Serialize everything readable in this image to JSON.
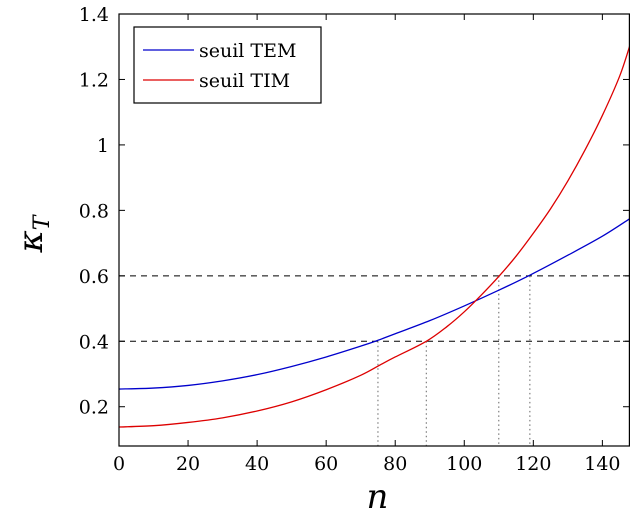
{
  "chart_data": {
    "type": "line",
    "xlabel": "n",
    "ylabel": "κ",
    "ylabel_sub": "T",
    "xlim": [
      0,
      148
    ],
    "ylim": [
      0.08,
      1.4
    ],
    "x_ticks": [
      0,
      20,
      40,
      60,
      80,
      100,
      120,
      140
    ],
    "x_tick_labels": [
      "0",
      "20",
      "40",
      "60",
      "80",
      "100",
      "120",
      "140"
    ],
    "y_ticks": [
      0.2,
      0.4,
      0.6,
      0.8,
      1.0,
      1.2,
      1.4
    ],
    "y_tick_labels": [
      "0.2",
      "0.4",
      "0.6",
      "0.8",
      "1",
      "1.2",
      "1.4"
    ],
    "grid": false,
    "legend_position": "top-left",
    "series": [
      {
        "name": "seuil TEM",
        "color": "#0000cc",
        "x": [
          0,
          10,
          20,
          30,
          40,
          50,
          60,
          70,
          75,
          80,
          90,
          100,
          110,
          119,
          130,
          140,
          148
        ],
        "y": [
          0.254,
          0.257,
          0.265,
          0.279,
          0.298,
          0.323,
          0.352,
          0.385,
          0.403,
          0.423,
          0.463,
          0.508,
          0.556,
          0.602,
          0.663,
          0.721,
          0.775
        ]
      },
      {
        "name": "seuil TIM",
        "color": "#dd0000",
        "x": [
          0,
          10,
          20,
          30,
          40,
          50,
          60,
          70,
          76,
          80,
          89,
          95,
          100,
          105,
          110,
          115,
          120,
          125,
          130,
          135,
          140,
          145,
          148
        ],
        "y": [
          0.138,
          0.142,
          0.152,
          0.166,
          0.187,
          0.215,
          0.252,
          0.296,
          0.33,
          0.352,
          0.4,
          0.445,
          0.49,
          0.542,
          0.598,
          0.66,
          0.73,
          0.805,
          0.89,
          0.985,
          1.09,
          1.21,
          1.305
        ]
      }
    ],
    "reference_lines": {
      "horizontal_dashed": [
        0.4,
        0.6
      ],
      "vertical_dotted": [
        {
          "x": 75,
          "y": 0.4
        },
        {
          "x": 89,
          "y": 0.4
        },
        {
          "x": 110,
          "y": 0.6
        },
        {
          "x": 119,
          "y": 0.6
        }
      ]
    }
  }
}
